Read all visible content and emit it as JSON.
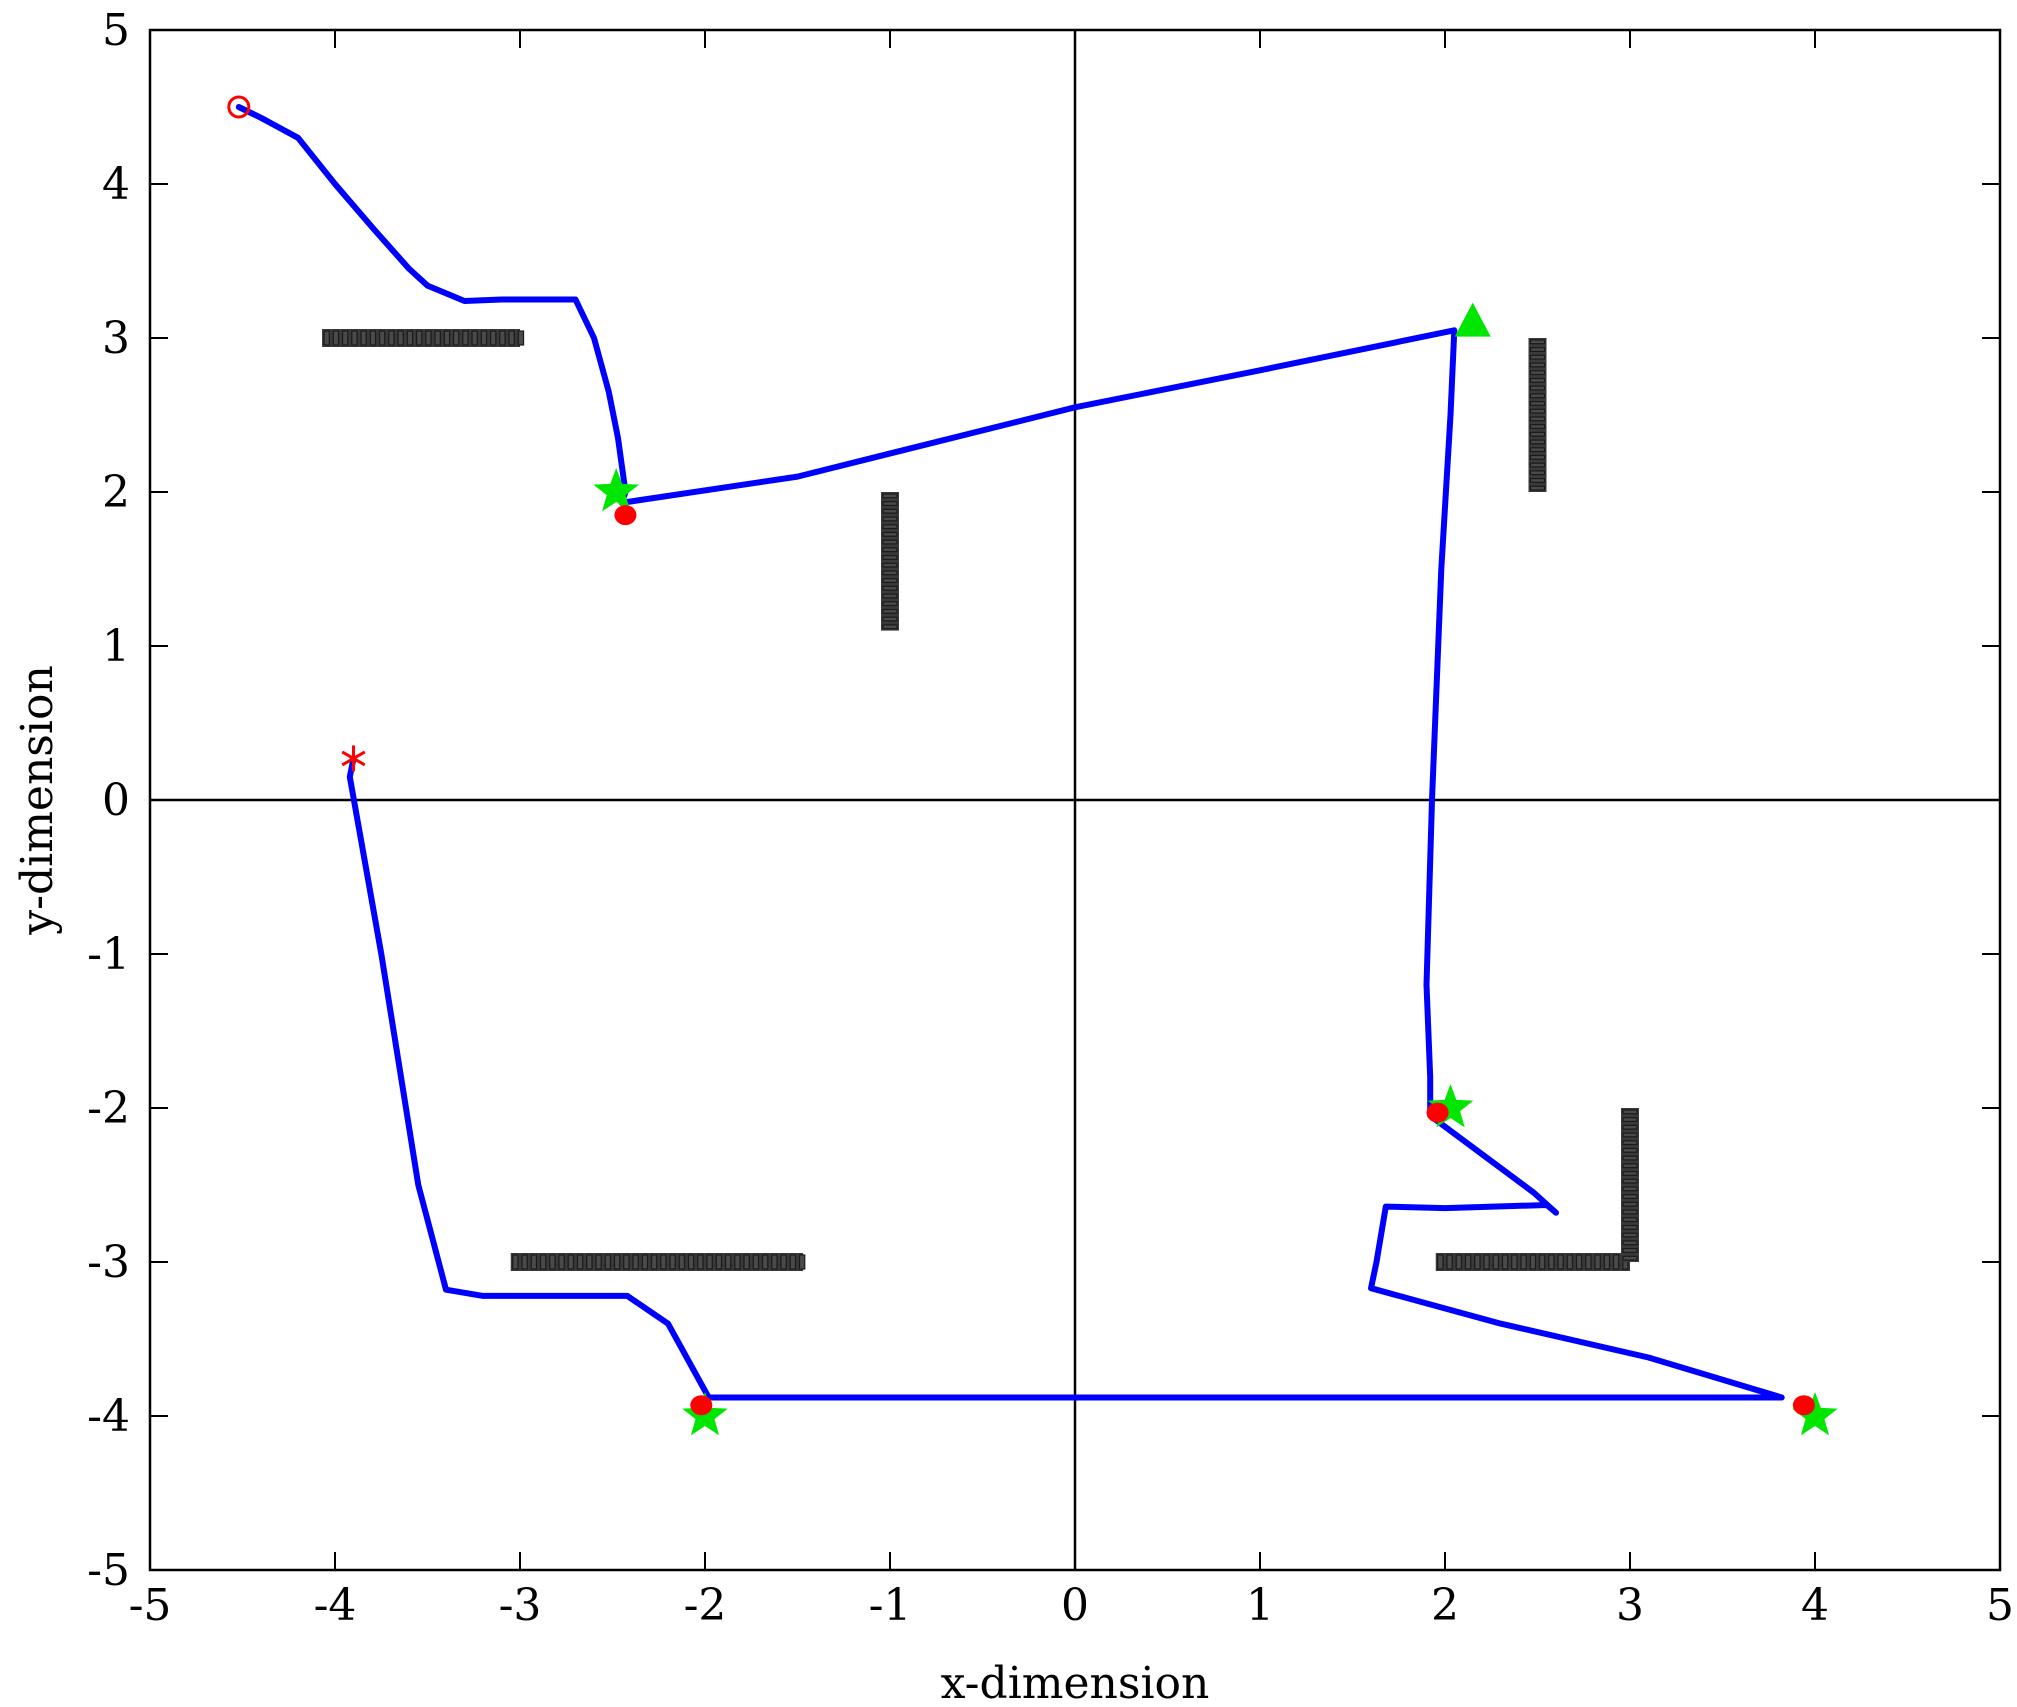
{
  "chart_data": {
    "type": "line",
    "xlabel": "x-dimension",
    "ylabel": "y-dimension",
    "xlim": [
      -5,
      5
    ],
    "ylim": [
      -5,
      5
    ],
    "xticks": [
      "-5",
      "-4",
      "-3",
      "-2",
      "-1",
      "0",
      "1",
      "2",
      "3",
      "4",
      "5"
    ],
    "yticks": [
      "5",
      "4",
      "3",
      "2",
      "1",
      "0",
      "-1",
      "-2",
      "-3",
      "-4",
      "-5"
    ],
    "grid": false,
    "zero_lines": true,
    "colors": {
      "path": "#0000ff",
      "obstacle": "#3a3a3a",
      "goal": "#00e600",
      "reached": "#ff0000",
      "start": "#ff0000"
    },
    "path": [
      [
        -4.52,
        4.5
      ],
      [
        -4.4,
        4.43
      ],
      [
        -4.2,
        4.3
      ],
      [
        -4.0,
        4.0
      ],
      [
        -3.8,
        3.72
      ],
      [
        -3.6,
        3.45
      ],
      [
        -3.5,
        3.34
      ],
      [
        -3.3,
        3.24
      ],
      [
        -3.1,
        3.25
      ],
      [
        -2.9,
        3.25
      ],
      [
        -2.7,
        3.25
      ],
      [
        -2.6,
        3.0
      ],
      [
        -2.52,
        2.65
      ],
      [
        -2.47,
        2.35
      ],
      [
        -2.43,
        2.0
      ],
      [
        -2.45,
        1.93
      ],
      [
        -1.5,
        2.1
      ],
      [
        0.0,
        2.55
      ],
      [
        1.0,
        2.79
      ],
      [
        2.05,
        3.05
      ],
      [
        2.03,
        2.5
      ],
      [
        1.98,
        1.5
      ],
      [
        1.93,
        0.0
      ],
      [
        1.9,
        -1.2
      ],
      [
        1.92,
        -1.8
      ],
      [
        1.92,
        -2.05
      ],
      [
        2.2,
        -2.3
      ],
      [
        2.48,
        -2.55
      ],
      [
        2.6,
        -2.68
      ],
      [
        2.55,
        -2.63
      ],
      [
        2.0,
        -2.65
      ],
      [
        1.68,
        -2.64
      ],
      [
        1.63,
        -3.0
      ],
      [
        1.6,
        -3.17
      ],
      [
        2.3,
        -3.4
      ],
      [
        3.1,
        -3.62
      ],
      [
        3.82,
        -3.88
      ],
      [
        3.0,
        -3.88
      ],
      [
        1.0,
        -3.88
      ],
      [
        -1.0,
        -3.88
      ],
      [
        -1.98,
        -3.88
      ],
      [
        -2.2,
        -3.4
      ],
      [
        -2.42,
        -3.22
      ],
      [
        -2.9,
        -3.22
      ],
      [
        -3.2,
        -3.22
      ],
      [
        -3.4,
        -3.18
      ],
      [
        -3.55,
        -2.5
      ],
      [
        -3.75,
        -1.0
      ],
      [
        -3.92,
        0.15
      ],
      [
        -3.9,
        0.27
      ]
    ],
    "start_point": [
      -4.52,
      4.5
    ],
    "end_point": [
      -3.9,
      0.27
    ],
    "goal_stars": [
      [
        -2.48,
        2.0
      ],
      [
        2.03,
        -2.0
      ],
      [
        -2.0,
        -4.0
      ],
      [
        4.0,
        -4.0
      ]
    ],
    "goal_triangle": [
      2.15,
      3.1
    ],
    "reached_points": [
      [
        -2.43,
        1.85
      ],
      [
        1.96,
        -2.03
      ],
      [
        -2.02,
        -3.93
      ],
      [
        3.94,
        -3.93
      ]
    ],
    "obstacles": [
      {
        "orientation": "h",
        "from": [
          -4.07,
          3.0
        ],
        "to": [
          -3.0,
          3.0
        ]
      },
      {
        "orientation": "v",
        "from": [
          -1.0,
          2.0
        ],
        "to": [
          -1.0,
          1.1
        ]
      },
      {
        "orientation": "v",
        "from": [
          2.5,
          3.0
        ],
        "to": [
          2.5,
          2.0
        ]
      },
      {
        "orientation": "h",
        "from": [
          -3.05,
          -3.0
        ],
        "to": [
          -1.47,
          -3.0
        ]
      },
      {
        "orientation": "h",
        "from": [
          1.95,
          -3.0
        ],
        "to": [
          3.0,
          -3.0
        ]
      },
      {
        "orientation": "v",
        "from": [
          3.0,
          -2.0
        ],
        "to": [
          3.0,
          -3.0
        ]
      }
    ]
  }
}
